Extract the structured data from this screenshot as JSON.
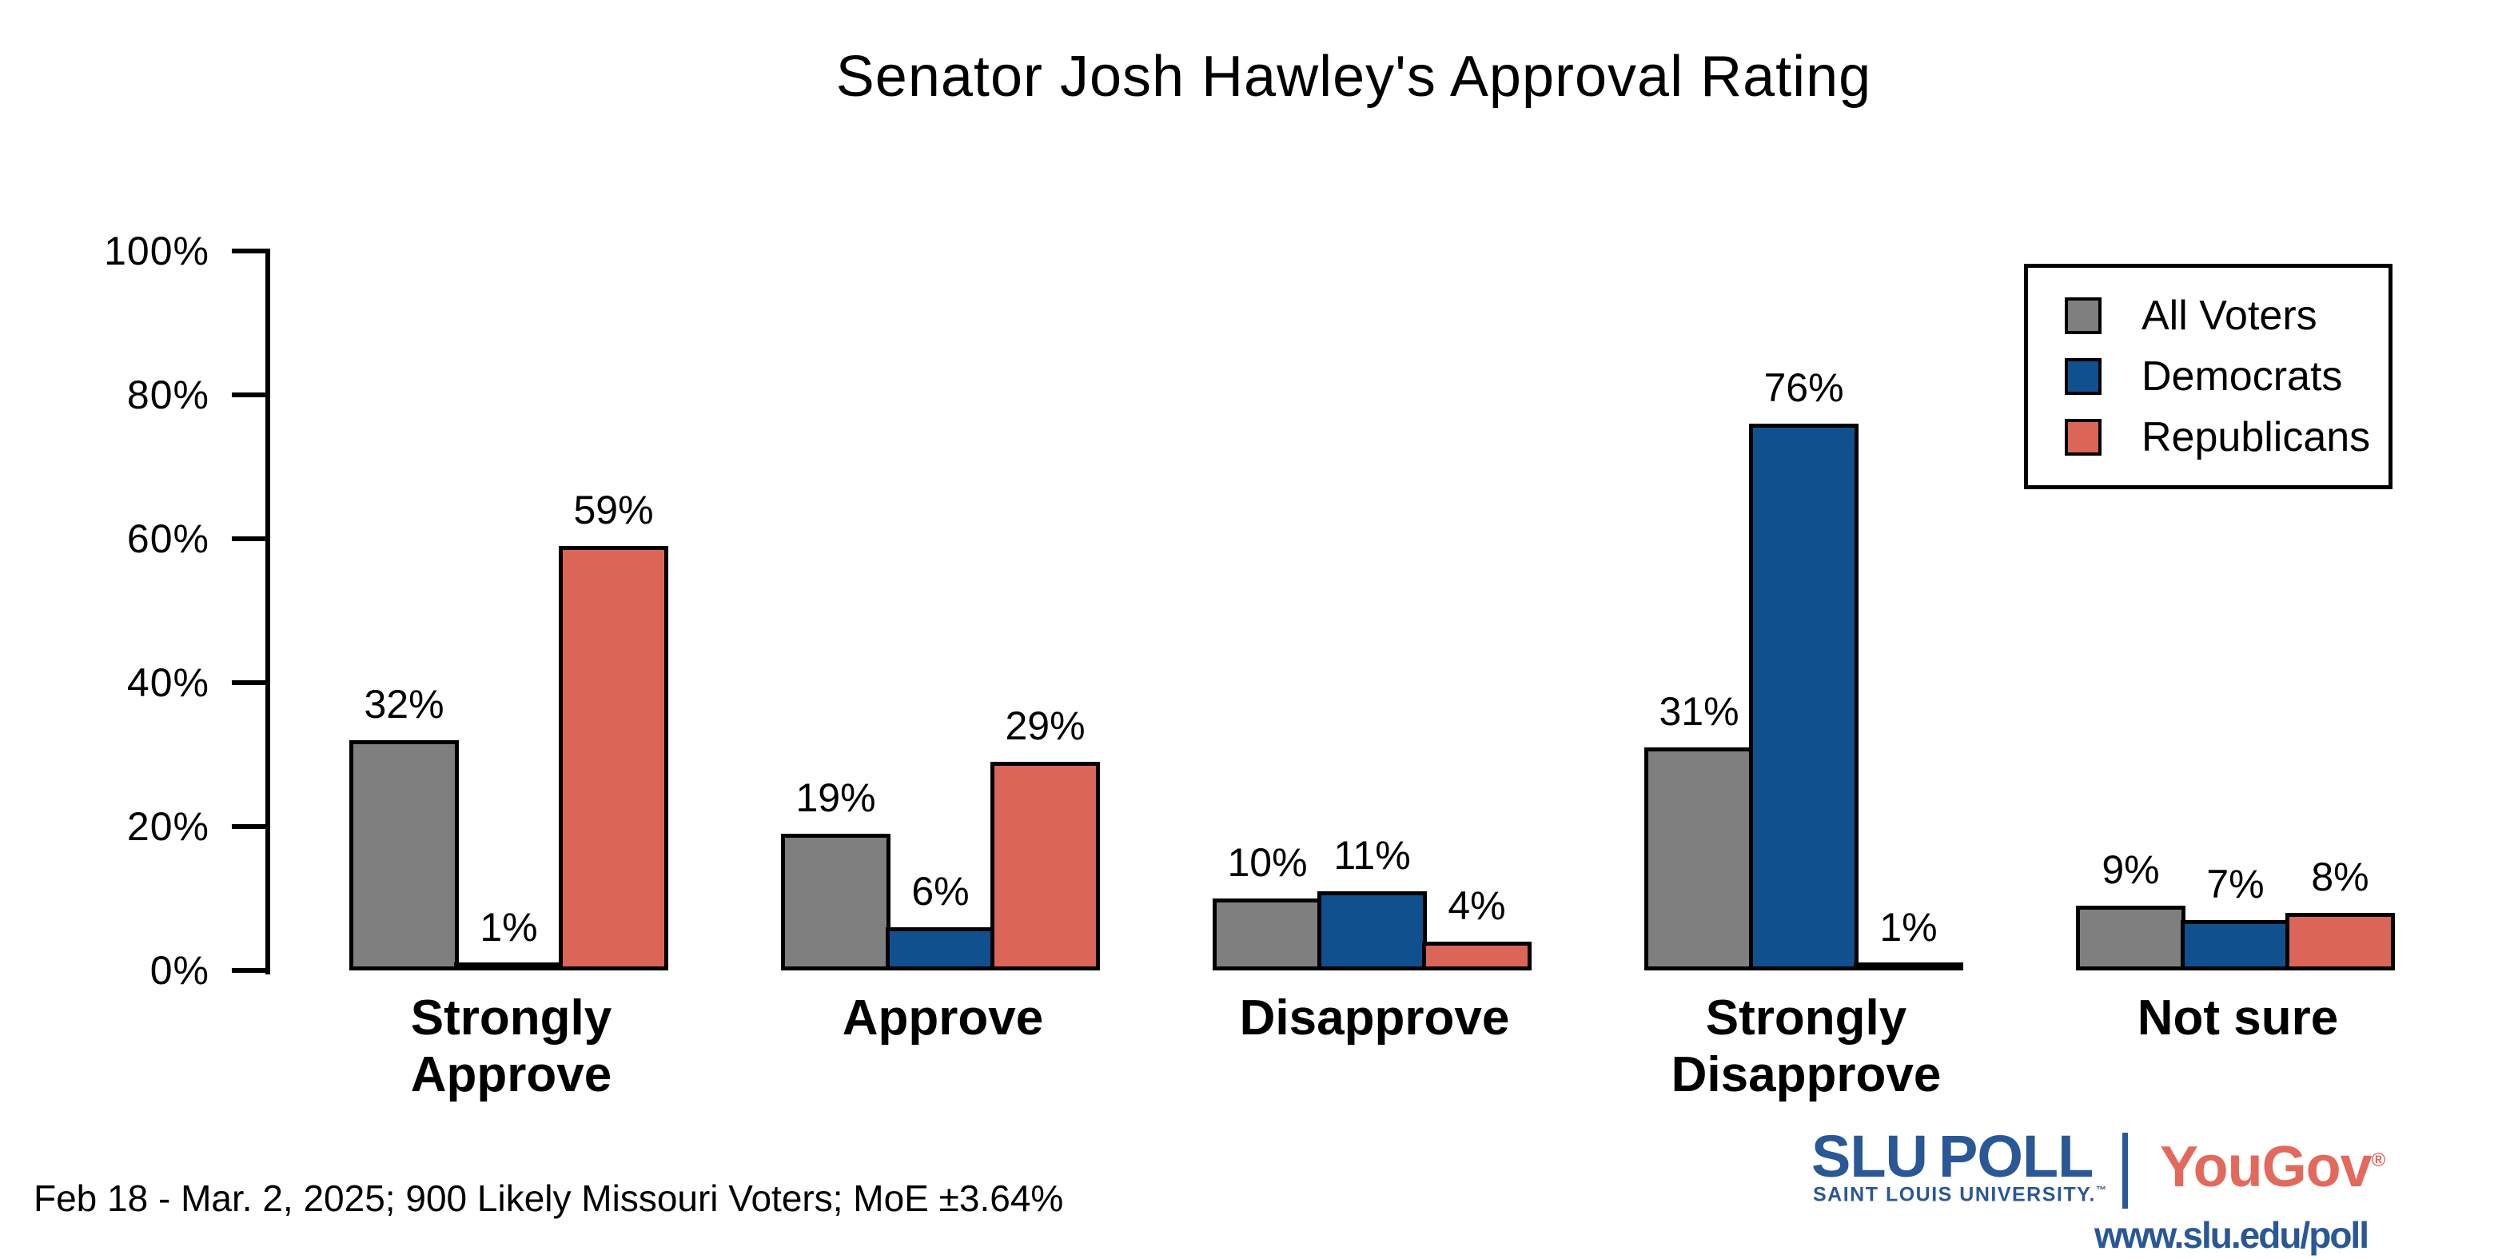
{
  "title": "Senator Josh Hawley's Approval Rating",
  "chart_data": {
    "type": "bar",
    "title": "Senator Josh Hawley's Approval Rating",
    "categories": [
      "Strongly\nApprove",
      "Approve",
      "Disapprove",
      "Strongly\nDisapprove",
      "Not sure"
    ],
    "series": [
      {
        "name": "All Voters",
        "color": "#7F7F7F",
        "values": [
          32,
          19,
          10,
          31,
          9
        ]
      },
      {
        "name": "Democrats",
        "color": "#11508F",
        "values": [
          1,
          6,
          11,
          76,
          7
        ]
      },
      {
        "name": "Republicans",
        "color": "#DB6557",
        "values": [
          59,
          29,
          4,
          1,
          8
        ]
      }
    ],
    "xlabel": "",
    "ylabel": "",
    "ylim": [
      0,
      100
    ],
    "yticks": [
      "0%",
      "20%",
      "40%",
      "60%",
      "80%",
      "100%"
    ],
    "grid": false,
    "legend_position": "top-right",
    "bar_outline_color": "#000000",
    "value_label_format": "percent"
  },
  "footer": {
    "note": "Feb 18 - Mar. 2, 2025; 900 Likely Missouri Voters; MoE ±3.64%",
    "slu_poll_logo": {
      "word1": "SLU",
      "word2": "POLL",
      "subtitle": "SAINT LOUIS UNIVERSITY.",
      "trademark": "™"
    },
    "yougov_logo": {
      "text": "YouGov",
      "registered": "®"
    },
    "url": "www.slu.edu/poll"
  },
  "branding": {
    "slu_blue": "#2A5795",
    "yougov_red": "#E2695C"
  }
}
